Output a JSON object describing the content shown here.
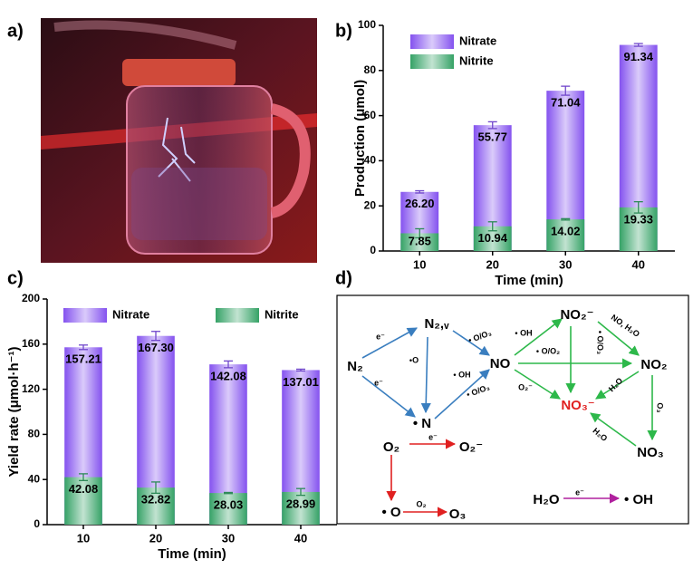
{
  "panel_labels": [
    "a)",
    "b)",
    "c)",
    "d)"
  ],
  "chart_data": [
    {
      "type": "bar",
      "barmode": "overlay",
      "categories": [
        "10",
        "20",
        "30",
        "40"
      ],
      "xlabel": "Time (min)",
      "ylabel": "Production (μmol)",
      "ylim": [
        0,
        100
      ],
      "yticks": [
        0,
        20,
        40,
        60,
        80,
        100
      ],
      "legend": "upper left",
      "series": [
        {
          "name": "Nitrate",
          "color": "#8452ef",
          "values": [
            26.2,
            55.77,
            71.04,
            91.34
          ],
          "value_labels": [
            "26.20",
            "55.77",
            "71.04",
            "91.34"
          ],
          "errors": [
            0.5,
            1.5,
            2,
            0.6
          ]
        },
        {
          "name": "Nitrite",
          "color": "#35a266",
          "values": [
            7.85,
            10.94,
            14.02,
            19.33
          ],
          "value_labels": [
            "7.85",
            "10.94",
            "14.02",
            "19.33"
          ],
          "errors": [
            2,
            2,
            0.3,
            2.5
          ]
        }
      ]
    },
    {
      "type": "bar",
      "barmode": "overlay",
      "categories": [
        "10",
        "20",
        "30",
        "40"
      ],
      "xlabel": "Time (min)",
      "ylabel": "Yield rate (μmol·h⁻¹)",
      "ylim": [
        0,
        200
      ],
      "yticks": [
        0,
        40,
        80,
        120,
        160,
        200
      ],
      "legend": "upper",
      "series": [
        {
          "name": "Nitrate",
          "color": "#8452ef",
          "values": [
            157.21,
            167.3,
            142.08,
            137.01
          ],
          "value_labels": [
            "157.21",
            "167.30",
            "142.08",
            "137.01"
          ],
          "errors": [
            2,
            4,
            3,
            0.8
          ]
        },
        {
          "name": "Nitrite",
          "color": "#35a266",
          "values": [
            42.08,
            32.82,
            28.03,
            28.99
          ],
          "value_labels": [
            "42.08",
            "32.82",
            "28.03",
            "28.99"
          ],
          "errors": [
            3,
            5,
            0.5,
            3
          ]
        }
      ]
    }
  ],
  "diagram": {
    "nodes": [
      "N₂",
      "N₂,ᵥ",
      "• N",
      "NO",
      "NO₂⁻",
      "NO₂",
      "NO₃⁻",
      "NO₃",
      "O₂",
      "O₂⁻",
      "• O",
      "O₃",
      "H₂O",
      "• OH"
    ],
    "edge_labels": [
      "e⁻",
      "e⁻",
      "•O",
      "• O/O₃",
      "• OH",
      "• O/O₃",
      "• OH",
      "• O/O₂",
      "• O/O₃",
      "NO, H₂O",
      "O₂⁻",
      "H₂O",
      "O₃",
      "H₂O",
      "e⁻",
      "O₂",
      "e⁻"
    ]
  }
}
